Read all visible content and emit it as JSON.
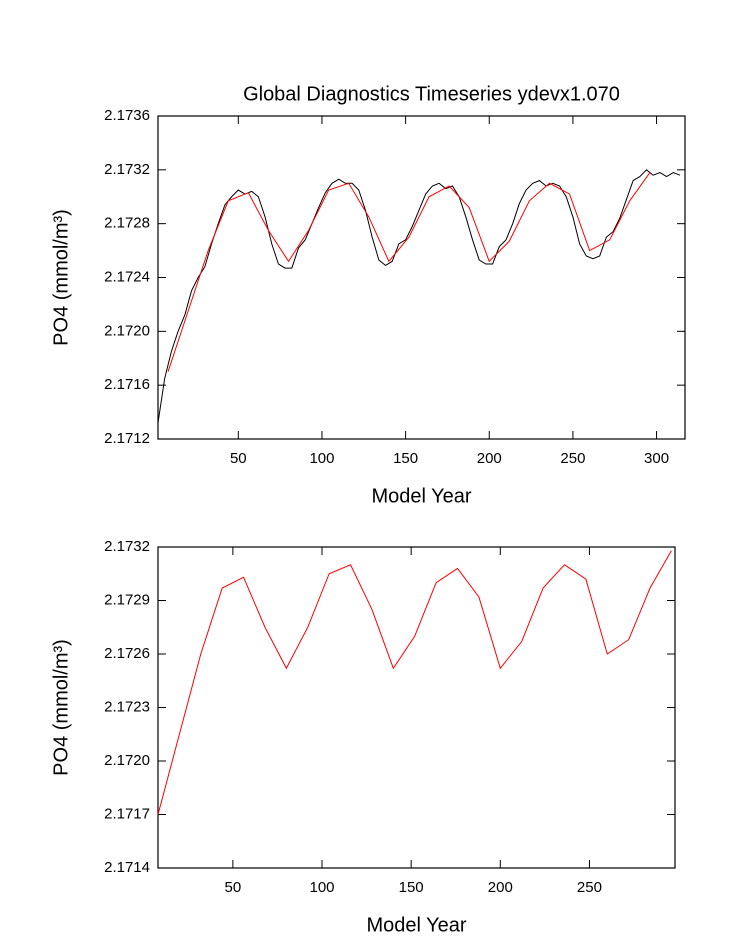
{
  "chart_data": [
    {
      "type": "line",
      "title": "Global Diagnostics Timeseries ydevx1.070",
      "x_label": "Model Year",
      "y_label": "PO4 (mmol/m³)",
      "xlim": [
        2,
        317
      ],
      "xticks": [
        50,
        100,
        150,
        200,
        250,
        300
      ],
      "ylim": [
        2.1712,
        2.1736
      ],
      "yticks": [
        2.1712,
        2.1716,
        {
          "value": 2.172,
          "label": "2.1720"
        },
        2.1724,
        2.1728,
        2.1732,
        2.1736
      ],
      "series": [
        {
          "color": "#000000",
          "x": [
            2,
            6,
            10,
            14,
            18,
            22,
            26,
            30,
            34,
            38,
            42,
            46,
            50,
            54,
            58,
            62,
            66,
            70,
            74,
            78,
            82,
            86,
            90,
            94,
            98,
            102,
            106,
            110,
            114,
            118,
            122,
            126,
            130,
            134,
            138,
            142,
            146,
            150,
            154,
            158,
            162,
            166,
            170,
            174,
            178,
            182,
            186,
            190,
            194,
            198,
            202,
            206,
            210,
            214,
            218,
            222,
            226,
            230,
            234,
            238,
            242,
            246,
            250,
            254,
            258,
            262,
            266,
            270,
            274,
            278,
            282,
            286,
            290,
            294,
            298,
            302,
            306,
            310,
            314
          ],
          "values": [
            2.17132,
            2.17165,
            2.17185,
            2.172,
            2.17212,
            2.1723,
            2.1724,
            2.17248,
            2.17265,
            2.1728,
            2.17294,
            2.173,
            2.17305,
            2.17302,
            2.17304,
            2.173,
            2.17285,
            2.17265,
            2.1725,
            2.17247,
            2.17247,
            2.17262,
            2.17268,
            2.1728,
            2.17292,
            2.17303,
            2.1731,
            2.17313,
            2.1731,
            2.1731,
            2.17305,
            2.1729,
            2.1727,
            2.17253,
            2.17249,
            2.17252,
            2.17265,
            2.17268,
            2.17278,
            2.1729,
            2.17302,
            2.17308,
            2.1731,
            2.17306,
            2.17308,
            2.173,
            2.17285,
            2.17268,
            2.17253,
            2.1725,
            2.1725,
            2.17263,
            2.17268,
            2.1728,
            2.17295,
            2.17305,
            2.1731,
            2.17312,
            2.17308,
            2.1731,
            2.17308,
            2.173,
            2.17285,
            2.17265,
            2.17256,
            2.17254,
            2.17256,
            2.1727,
            2.17274,
            2.17284,
            2.17298,
            2.17312,
            2.17315,
            2.1732,
            2.17316,
            2.17318,
            2.17315,
            2.17318,
            2.17316
          ]
        },
        {
          "color": "#ff0000",
          "x": [
            8,
            20,
            32,
            44,
            56,
            68,
            80,
            92,
            104,
            116,
            128,
            140,
            152,
            164,
            176,
            188,
            200,
            212,
            224,
            236,
            248,
            260,
            272,
            284,
            296
          ],
          "values": [
            2.1717,
            2.17215,
            2.1726,
            2.17297,
            2.17303,
            2.17275,
            2.17252,
            2.17275,
            2.17305,
            2.1731,
            2.17285,
            2.17252,
            2.1727,
            2.173,
            2.17308,
            2.17292,
            2.17252,
            2.17267,
            2.17297,
            2.1731,
            2.17302,
            2.1726,
            2.17268,
            2.17297,
            2.17318
          ]
        }
      ]
    },
    {
      "type": "line",
      "x_label": "Model Year",
      "y_label": "PO4 (mmol/m³)",
      "xlim": [
        8,
        298
      ],
      "xticks": [
        50,
        100,
        150,
        200,
        250
      ],
      "ylim": [
        2.1714,
        2.1732
      ],
      "yticks": [
        2.1714,
        2.1717,
        {
          "value": 2.172,
          "label": "2.1720"
        },
        2.1723,
        2.1726,
        2.1729,
        2.1732
      ],
      "series": [
        {
          "color": "#ff0000",
          "x": [
            8,
            20,
            32,
            44,
            56,
            68,
            80,
            92,
            104,
            116,
            128,
            140,
            152,
            164,
            176,
            188,
            200,
            212,
            224,
            236,
            248,
            260,
            272,
            284,
            296
          ],
          "values": [
            2.1717,
            2.17215,
            2.1726,
            2.17297,
            2.17303,
            2.17275,
            2.17252,
            2.17275,
            2.17305,
            2.1731,
            2.17285,
            2.17252,
            2.1727,
            2.173,
            2.17308,
            2.17292,
            2.17252,
            2.17267,
            2.17297,
            2.1731,
            2.17302,
            2.1726,
            2.17268,
            2.17297,
            2.17318
          ]
        }
      ]
    }
  ]
}
